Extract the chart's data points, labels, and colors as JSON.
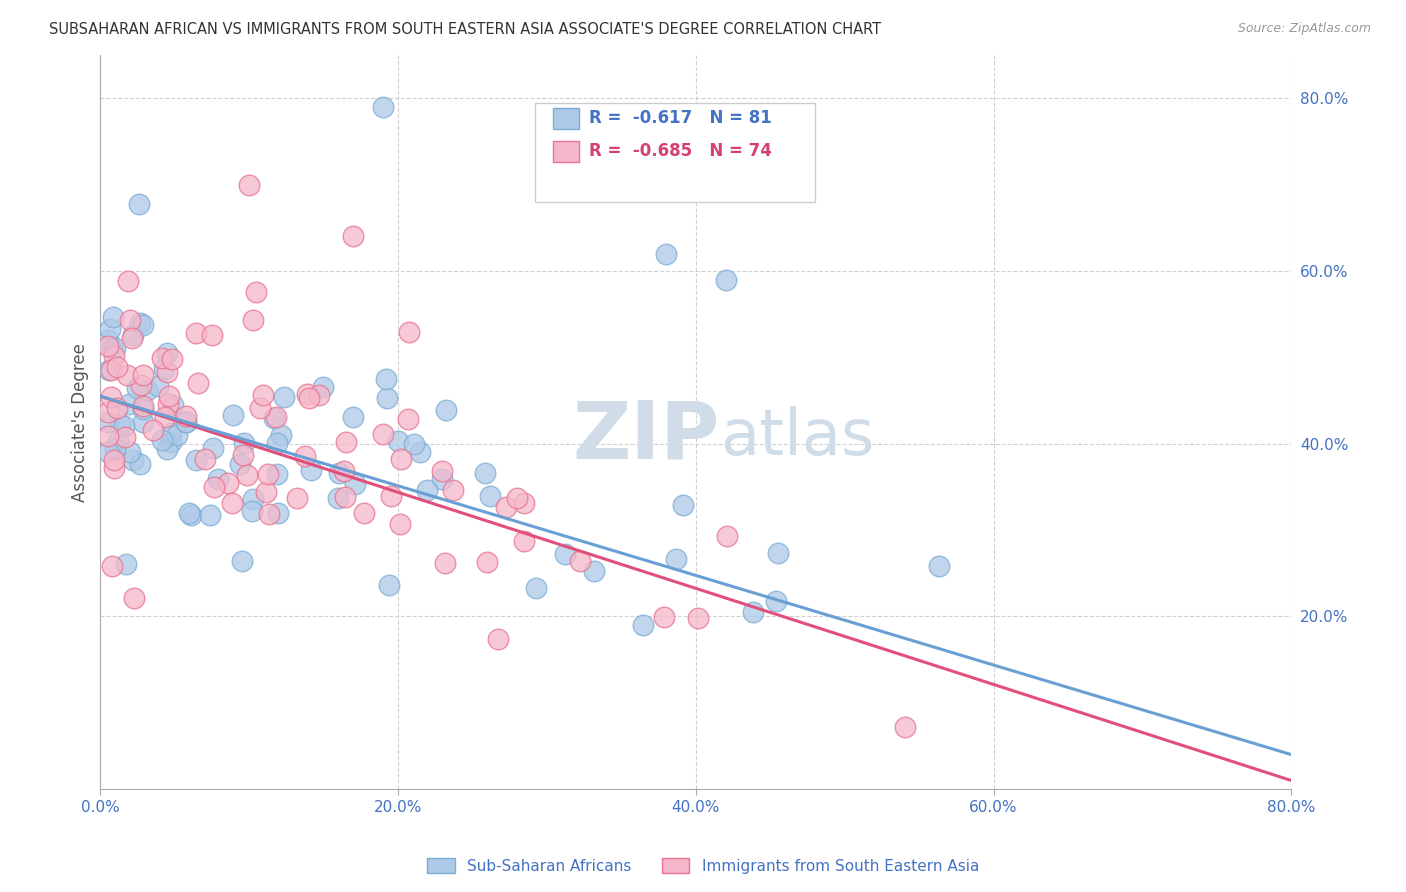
{
  "title": "SUBSAHARAN AFRICAN VS IMMIGRANTS FROM SOUTH EASTERN ASIA ASSOCIATE'S DEGREE CORRELATION CHART",
  "source": "Source: ZipAtlas.com",
  "ylabel": "Associate's Degree",
  "xlim": [
    0.0,
    0.8
  ],
  "ylim": [
    0.0,
    0.85
  ],
  "xtick_vals": [
    0.0,
    0.2,
    0.4,
    0.6,
    0.8
  ],
  "ytick_vals": [
    0.2,
    0.4,
    0.6,
    0.8
  ],
  "legend_label1": "Sub-Saharan Africans",
  "legend_label2": "Immigrants from South Eastern Asia",
  "R1": "-0.617",
  "N1": "81",
  "R2": "-0.685",
  "N2": "74",
  "color1": "#adc9e8",
  "color2": "#f5b8ca",
  "edge_color1": "#7aadd4",
  "edge_color2": "#e8728f",
  "line_color1": "#6a9fd4",
  "line_color2": "#e0507a",
  "blue_text_color": "#4472C4",
  "pink_text_color": "#d44070",
  "watermark_color": "#d0dce8",
  "background_color": "#ffffff",
  "grid_color": "#cccccc"
}
